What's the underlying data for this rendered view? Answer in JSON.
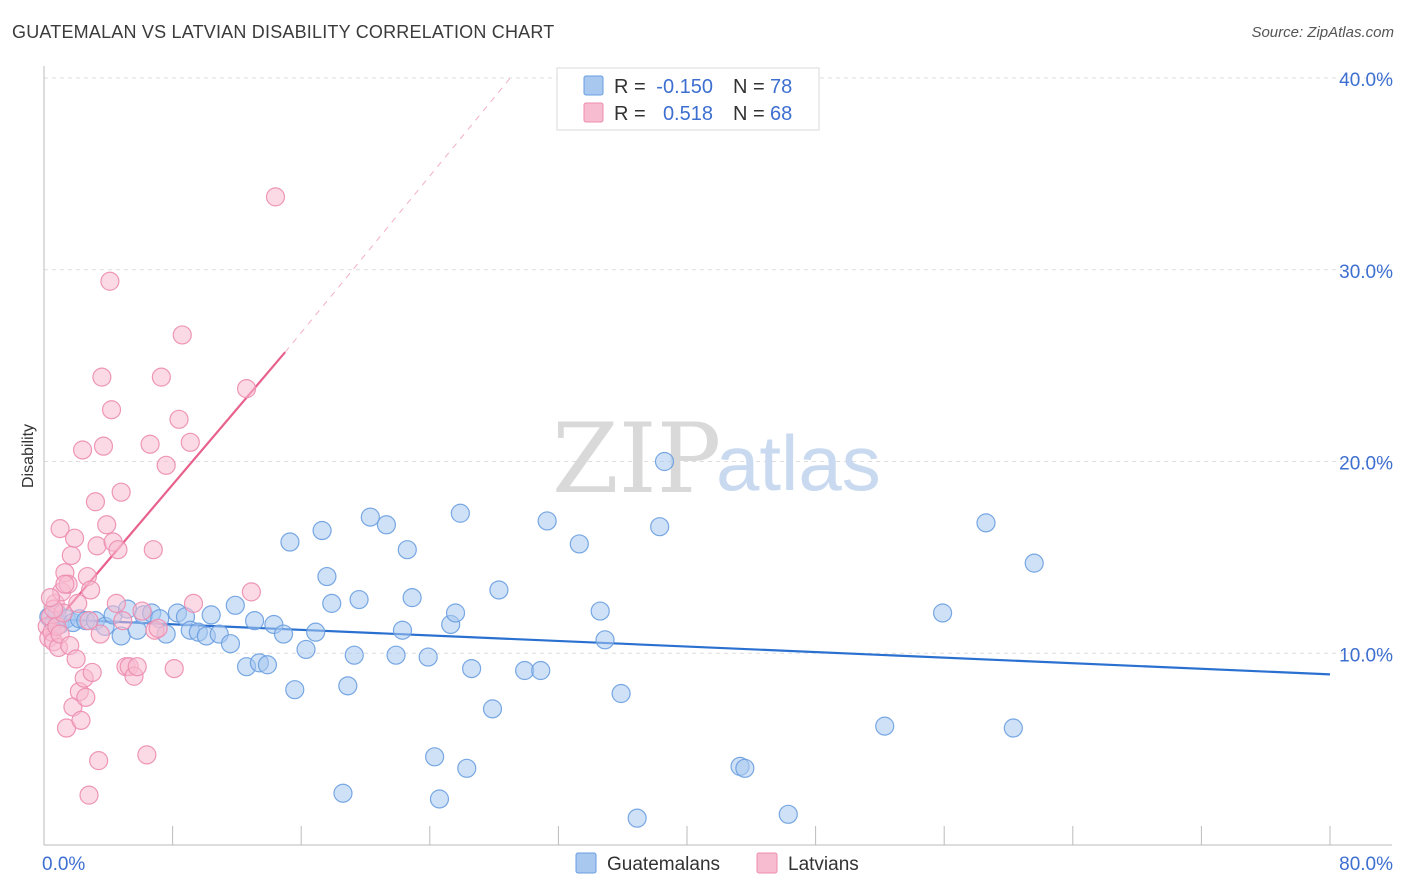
{
  "title": "GUATEMALAN VS LATVIAN DISABILITY CORRELATION CHART",
  "source": "Source: ZipAtlas.com",
  "watermark": {
    "zip": "ZIP",
    "atlas": "atlas"
  },
  "colors": {
    "guatemalans_fill": "#a8c8f0",
    "guatemalans_stroke": "#6a9ee0",
    "guatemalans_line": "#2a70d0",
    "latvians_fill": "#f8bcd0",
    "latvians_stroke": "#ec8caf",
    "latvians_line": "#e8608c",
    "axis_text": "#3d6fd1",
    "grid": "#dddddd"
  },
  "legend": {
    "guatemalans": {
      "r_label": "R =",
      "r_value": "-0.150",
      "n_label": "N =",
      "n_value": "78"
    },
    "latvians": {
      "r_label": "R =",
      "r_value": "0.518",
      "n_label": "N =",
      "n_value": "68"
    }
  },
  "chart_data": {
    "type": "scatter",
    "title": "GUATEMALAN VS LATVIAN DISABILITY CORRELATION CHART",
    "xlabel": "",
    "ylabel": "Disability",
    "xlim": [
      0,
      80
    ],
    "ylim": [
      0,
      40
    ],
    "x_tick_labels": [
      "0.0%",
      "80.0%"
    ],
    "y_ticks": [
      10,
      20,
      30,
      40
    ],
    "y_tick_labels": [
      "10.0%",
      "20.0%",
      "30.0%",
      "40.0%"
    ],
    "grid": true,
    "legend_position": "top-center",
    "series": [
      {
        "name": "Guatemalans",
        "r": -0.15,
        "n": 78,
        "trend": {
          "x": [
            0,
            80
          ],
          "y": [
            11.8,
            8.9
          ],
          "dashed_extension": null
        },
        "points": [
          [
            0.3,
            11.9
          ],
          [
            0.6,
            11.6
          ],
          [
            0.8,
            12.1
          ],
          [
            1.0,
            11.5
          ],
          [
            1.4,
            11.8
          ],
          [
            1.8,
            11.6
          ],
          [
            2.2,
            11.8
          ],
          [
            2.6,
            11.7
          ],
          [
            3.2,
            11.7
          ],
          [
            3.8,
            11.4
          ],
          [
            4.3,
            12.0
          ],
          [
            4.8,
            10.9
          ],
          [
            5.2,
            12.3
          ],
          [
            5.8,
            11.2
          ],
          [
            6.2,
            12.0
          ],
          [
            6.7,
            12.1
          ],
          [
            7.2,
            11.8
          ],
          [
            7.6,
            11.0
          ],
          [
            8.3,
            12.1
          ],
          [
            8.8,
            11.9
          ],
          [
            9.1,
            11.2
          ],
          [
            9.6,
            11.1
          ],
          [
            10.1,
            10.9
          ],
          [
            10.4,
            12.0
          ],
          [
            10.9,
            11.0
          ],
          [
            11.6,
            10.5
          ],
          [
            11.9,
            12.5
          ],
          [
            12.6,
            9.3
          ],
          [
            13.1,
            11.7
          ],
          [
            13.4,
            9.5
          ],
          [
            13.9,
            9.4
          ],
          [
            14.3,
            11.5
          ],
          [
            14.9,
            11.0
          ],
          [
            15.3,
            15.8
          ],
          [
            15.6,
            8.1
          ],
          [
            16.3,
            10.2
          ],
          [
            16.9,
            11.1
          ],
          [
            17.3,
            16.4
          ],
          [
            17.6,
            14.0
          ],
          [
            17.9,
            12.6
          ],
          [
            18.6,
            2.7
          ],
          [
            18.9,
            8.3
          ],
          [
            19.3,
            9.9
          ],
          [
            19.6,
            12.8
          ],
          [
            20.3,
            17.1
          ],
          [
            21.3,
            16.7
          ],
          [
            21.9,
            9.9
          ],
          [
            22.3,
            11.2
          ],
          [
            22.6,
            15.4
          ],
          [
            22.9,
            12.9
          ],
          [
            23.9,
            9.8
          ],
          [
            24.3,
            4.6
          ],
          [
            24.6,
            2.4
          ],
          [
            25.3,
            11.5
          ],
          [
            25.6,
            12.1
          ],
          [
            25.9,
            17.3
          ],
          [
            26.3,
            4.0
          ],
          [
            26.6,
            9.2
          ],
          [
            27.9,
            7.1
          ],
          [
            28.3,
            13.3
          ],
          [
            29.9,
            9.1
          ],
          [
            30.9,
            9.1
          ],
          [
            31.3,
            16.9
          ],
          [
            33.3,
            15.7
          ],
          [
            34.6,
            12.2
          ],
          [
            34.9,
            10.7
          ],
          [
            35.9,
            7.9
          ],
          [
            36.9,
            1.4
          ],
          [
            38.3,
            16.6
          ],
          [
            38.6,
            20.0
          ],
          [
            43.3,
            4.1
          ],
          [
            43.6,
            4.0
          ],
          [
            46.3,
            1.6
          ],
          [
            52.3,
            6.2
          ],
          [
            55.9,
            12.1
          ],
          [
            58.6,
            16.8
          ],
          [
            60.3,
            6.1
          ],
          [
            61.6,
            14.7
          ]
        ]
      },
      {
        "name": "Latvians",
        "r": 0.518,
        "n": 68,
        "trend": {
          "x": [
            0,
            15
          ],
          "y": [
            10.9,
            25.7
          ],
          "dashed_extension": {
            "x": [
              15,
              29.2
            ],
            "y": [
              25.7,
              40.2
            ]
          }
        },
        "points": [
          [
            0.2,
            11.4
          ],
          [
            0.3,
            10.8
          ],
          [
            0.4,
            11.9
          ],
          [
            0.5,
            11.1
          ],
          [
            0.6,
            10.6
          ],
          [
            0.7,
            12.6
          ],
          [
            0.8,
            11.4
          ],
          [
            0.9,
            10.3
          ],
          [
            1.0,
            11.0
          ],
          [
            1.0,
            16.5
          ],
          [
            1.1,
            13.2
          ],
          [
            1.2,
            12.1
          ],
          [
            1.3,
            14.2
          ],
          [
            1.4,
            6.1
          ],
          [
            1.5,
            13.6
          ],
          [
            1.6,
            10.4
          ],
          [
            1.7,
            15.1
          ],
          [
            1.8,
            7.2
          ],
          [
            1.9,
            16.0
          ],
          [
            2.0,
            9.7
          ],
          [
            2.1,
            12.6
          ],
          [
            2.2,
            8.0
          ],
          [
            2.3,
            6.5
          ],
          [
            2.4,
            20.6
          ],
          [
            2.5,
            8.7
          ],
          [
            2.6,
            7.7
          ],
          [
            2.7,
            14.0
          ],
          [
            2.8,
            11.7
          ],
          [
            2.9,
            13.3
          ],
          [
            3.0,
            9.0
          ],
          [
            3.2,
            17.9
          ],
          [
            3.3,
            15.6
          ],
          [
            3.4,
            4.4
          ],
          [
            3.5,
            11.0
          ],
          [
            3.6,
            24.4
          ],
          [
            3.7,
            20.8
          ],
          [
            3.9,
            16.7
          ],
          [
            4.1,
            29.4
          ],
          [
            4.2,
            22.7
          ],
          [
            4.3,
            15.8
          ],
          [
            4.5,
            12.6
          ],
          [
            4.6,
            15.4
          ],
          [
            4.8,
            18.4
          ],
          [
            4.9,
            11.7
          ],
          [
            5.1,
            9.3
          ],
          [
            5.3,
            9.3
          ],
          [
            5.6,
            8.8
          ],
          [
            5.8,
            9.3
          ],
          [
            6.1,
            12.2
          ],
          [
            6.4,
            4.7
          ],
          [
            6.6,
            20.9
          ],
          [
            6.8,
            15.4
          ],
          [
            6.9,
            11.2
          ],
          [
            7.1,
            11.3
          ],
          [
            7.3,
            24.4
          ],
          [
            7.6,
            19.8
          ],
          [
            8.4,
            22.2
          ],
          [
            8.1,
            9.2
          ],
          [
            8.6,
            26.6
          ],
          [
            9.1,
            21.0
          ],
          [
            9.3,
            12.6
          ],
          [
            12.6,
            23.8
          ],
          [
            12.9,
            13.2
          ],
          [
            14.4,
            33.8
          ],
          [
            0.6,
            12.3
          ],
          [
            1.3,
            13.6
          ],
          [
            2.8,
            2.6
          ],
          [
            0.4,
            12.9
          ]
        ]
      }
    ]
  },
  "bottom_legend": {
    "guatemalans_label": "Guatemalans",
    "latvians_label": "Latvians"
  }
}
